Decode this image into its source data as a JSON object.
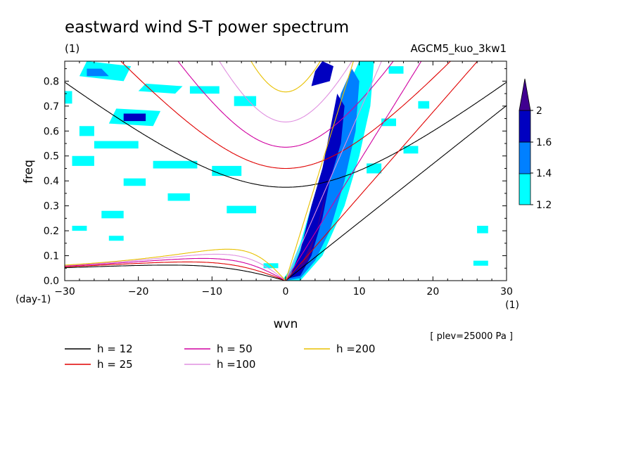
{
  "chart_data": {
    "type": "line",
    "title": "eastward wind S-T power spectrum",
    "subtitle_left": "(1)",
    "subtitle_right": "AGCM5_kuo_3kw1",
    "xlabel": "wvn",
    "ylabel": "freq",
    "xunit": "(1)",
    "yunit": "(day-1)",
    "xlim": [
      -30,
      30
    ],
    "ylim": [
      0,
      0.88
    ],
    "xticks": [
      -30,
      -20,
      -10,
      0,
      10,
      20,
      30
    ],
    "yticks": [
      0.0,
      0.1,
      0.2,
      0.3,
      0.4,
      0.5,
      0.6,
      0.7,
      0.8
    ],
    "footnote": "[ plev=25000 Pa ]",
    "grid": false,
    "legend_position": "below",
    "legend": [
      {
        "label": "h = 12",
        "h": 12,
        "color": "#000000"
      },
      {
        "label": "h = 25",
        "h": 25,
        "color": "#e00000"
      },
      {
        "label": "h = 50",
        "h": 50,
        "color": "#d000a0"
      },
      {
        "label": "h =100",
        "h": 100,
        "color": "#e090e0"
      },
      {
        "label": "h =200",
        "h": 200,
        "color": "#e8c000"
      }
    ],
    "colorbar": {
      "levels": [
        "1.2",
        "1.4",
        "1.6",
        "2"
      ],
      "colors": [
        "#00ffff",
        "#0080ff",
        "#0000c0",
        "#400090"
      ]
    },
    "contour_regions": [
      {
        "level": 2,
        "x": [
          1,
          2,
          3,
          4,
          5,
          5.5,
          5,
          4,
          3
        ],
        "y": [
          0.02,
          0.06,
          0.12,
          0.18,
          0.3,
          0.36,
          0.28,
          0.18,
          0.08
        ]
      },
      {
        "level": 1.6,
        "x": [
          0.5,
          2,
          3.5,
          5,
          6,
          7.5,
          8,
          7,
          6,
          5,
          3.5,
          2
        ],
        "y": [
          0.01,
          0.02,
          0.1,
          0.25,
          0.4,
          0.55,
          0.7,
          0.75,
          0.6,
          0.45,
          0.3,
          0.12
        ]
      },
      {
        "level": 1.4,
        "x": [
          0,
          2,
          4,
          6,
          8,
          9.5,
          10,
          9,
          7.5,
          6,
          4,
          2.5,
          1
        ],
        "y": [
          0.0,
          0.01,
          0.08,
          0.2,
          0.4,
          0.6,
          0.8,
          0.85,
          0.75,
          0.55,
          0.35,
          0.15,
          0.03
        ]
      },
      {
        "level": 1.2,
        "x": [
          -0.5,
          2,
          5,
          8,
          10,
          11.5,
          12,
          10,
          8,
          6,
          4,
          2,
          0.5
        ],
        "y": [
          0.0,
          0.0,
          0.1,
          0.3,
          0.5,
          0.7,
          0.88,
          0.88,
          0.75,
          0.55,
          0.35,
          0.15,
          0.04
        ]
      },
      {
        "level": 1.6,
        "x": [
          3.5,
          6,
          6.5,
          5,
          4
        ],
        "y": [
          0.78,
          0.8,
          0.86,
          0.88,
          0.84
        ]
      },
      {
        "level": 1.6,
        "x": [
          -22,
          -19,
          -19,
          -22
        ],
        "y": [
          0.64,
          0.64,
          0.67,
          0.67
        ]
      },
      {
        "level": 1.4,
        "x": [
          -27,
          -24,
          -25,
          -27
        ],
        "y": [
          0.82,
          0.82,
          0.85,
          0.85
        ]
      },
      {
        "level": 1.2,
        "x": [
          -28,
          -22,
          -21,
          -27
        ],
        "y": [
          0.82,
          0.8,
          0.86,
          0.88
        ]
      },
      {
        "level": 1.2,
        "x": [
          -24,
          -18,
          -17,
          -23
        ],
        "y": [
          0.63,
          0.62,
          0.68,
          0.69
        ]
      },
      {
        "level": 1.2,
        "x": [
          -20,
          -15,
          -14,
          -19
        ],
        "y": [
          0.76,
          0.75,
          0.78,
          0.79
        ]
      },
      {
        "level": 1.2,
        "x": [
          -7,
          -4,
          -4,
          -7
        ],
        "y": [
          0.7,
          0.7,
          0.74,
          0.74
        ]
      },
      {
        "level": 1.2,
        "x": [
          -13,
          -9,
          -9,
          -13
        ],
        "y": [
          0.75,
          0.75,
          0.78,
          0.78
        ]
      },
      {
        "level": 1.2,
        "x": [
          -26,
          -20,
          -20,
          -26
        ],
        "y": [
          0.53,
          0.53,
          0.56,
          0.56
        ]
      },
      {
        "level": 1.2,
        "x": [
          -18,
          -12,
          -12,
          -18
        ],
        "y": [
          0.45,
          0.45,
          0.48,
          0.48
        ]
      },
      {
        "level": 1.2,
        "x": [
          -29,
          -26,
          -26,
          -29
        ],
        "y": [
          0.46,
          0.46,
          0.5,
          0.5
        ]
      },
      {
        "level": 1.2,
        "x": [
          -10,
          -6,
          -6,
          -10
        ],
        "y": [
          0.42,
          0.42,
          0.46,
          0.46
        ]
      },
      {
        "level": 1.2,
        "x": [
          -8,
          -4,
          -4,
          -8
        ],
        "y": [
          0.27,
          0.27,
          0.3,
          0.3
        ]
      },
      {
        "level": 1.2,
        "x": [
          -16,
          -13,
          -13,
          -16
        ],
        "y": [
          0.32,
          0.32,
          0.35,
          0.35
        ]
      },
      {
        "level": 1.2,
        "x": [
          -25,
          -22,
          -22,
          -25
        ],
        "y": [
          0.25,
          0.25,
          0.28,
          0.28
        ]
      },
      {
        "level": 1.2,
        "x": [
          -28,
          -26,
          -26,
          -28
        ],
        "y": [
          0.58,
          0.58,
          0.62,
          0.62
        ]
      },
      {
        "level": 1.2,
        "x": [
          -30,
          -29,
          -29,
          -30
        ],
        "y": [
          0.71,
          0.71,
          0.76,
          0.76
        ]
      },
      {
        "level": 1.2,
        "x": [
          -22,
          -19,
          -19,
          -22
        ],
        "y": [
          0.38,
          0.38,
          0.41,
          0.41
        ]
      },
      {
        "level": 1.2,
        "x": [
          14,
          16,
          16,
          14
        ],
        "y": [
          0.83,
          0.83,
          0.86,
          0.86
        ]
      },
      {
        "level": 1.2,
        "x": [
          13,
          15,
          15,
          13
        ],
        "y": [
          0.62,
          0.62,
          0.65,
          0.65
        ]
      },
      {
        "level": 1.2,
        "x": [
          16,
          18,
          18,
          16
        ],
        "y": [
          0.51,
          0.51,
          0.54,
          0.54
        ]
      },
      {
        "level": 1.2,
        "x": [
          18,
          19.5,
          19.5,
          18
        ],
        "y": [
          0.69,
          0.69,
          0.72,
          0.72
        ]
      },
      {
        "level": 1.2,
        "x": [
          11,
          13,
          13,
          11
        ],
        "y": [
          0.43,
          0.43,
          0.47,
          0.47
        ]
      },
      {
        "level": 1.2,
        "x": [
          26,
          27.5,
          27.5,
          26
        ],
        "y": [
          0.19,
          0.19,
          0.22,
          0.22
        ]
      },
      {
        "level": 1.2,
        "x": [
          25.5,
          27.5,
          27.5,
          25.5
        ],
        "y": [
          0.06,
          0.06,
          0.08,
          0.08
        ]
      },
      {
        "level": 1.2,
        "x": [
          -3,
          -1,
          -1,
          -3
        ],
        "y": [
          0.05,
          0.05,
          0.07,
          0.07
        ]
      },
      {
        "level": 1.2,
        "x": [
          -24,
          -22,
          -22,
          -24
        ],
        "y": [
          0.16,
          0.16,
          0.18,
          0.18
        ]
      },
      {
        "level": 1.2,
        "x": [
          -29,
          -27,
          -27,
          -29
        ],
        "y": [
          0.2,
          0.2,
          0.22,
          0.22
        ]
      }
    ]
  }
}
